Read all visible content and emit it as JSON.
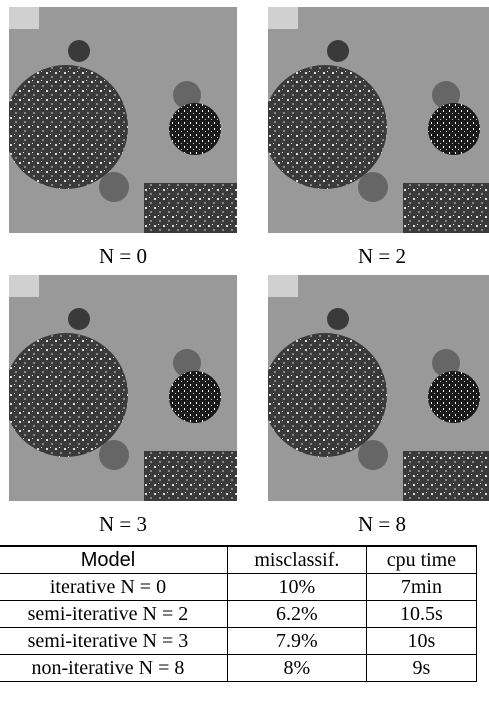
{
  "figure": {
    "panels": [
      {
        "caption": "N = 0"
      },
      {
        "caption": "N = 2"
      },
      {
        "caption": "N = 3"
      },
      {
        "caption": "N = 8"
      }
    ]
  },
  "table": {
    "header": [
      "Model",
      "misclassif.",
      "cpu time"
    ],
    "rows": [
      [
        "iterative N = 0",
        "10%",
        "7min"
      ],
      [
        "semi-iterative N = 2",
        "6.2%",
        "10.5s"
      ],
      [
        "semi-iterative N = 3",
        "7.9%",
        "10s"
      ],
      [
        "non-iterative N = 8",
        "8%",
        "9s"
      ]
    ]
  }
}
